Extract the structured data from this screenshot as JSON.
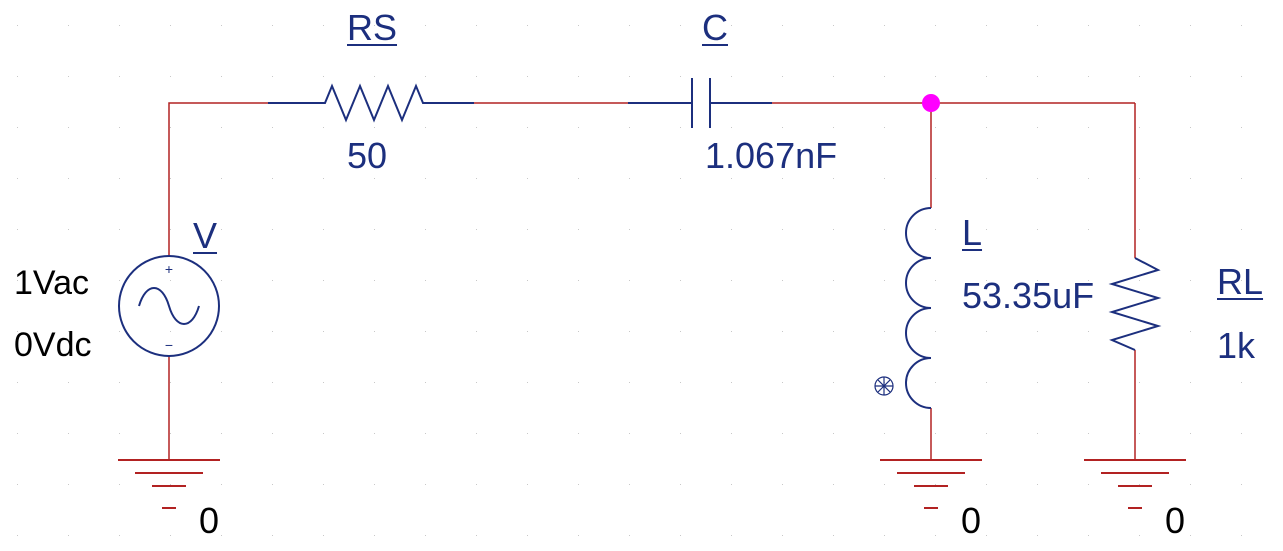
{
  "source": {
    "ref": "V",
    "ac": "1Vac",
    "dc": "0Vdc",
    "plus": "+",
    "minus": "−"
  },
  "rs": {
    "ref": "RS",
    "value": "50"
  },
  "c": {
    "ref": "C",
    "value": "1.067nF"
  },
  "l": {
    "ref": "L",
    "value": "53.35uF"
  },
  "rl": {
    "ref": "RL",
    "value": "1k"
  },
  "grounds": [
    "0",
    "0",
    "0"
  ],
  "colors": {
    "wire": "#b22222",
    "component": "#1c2f7e",
    "junction": "#ff00ff",
    "label": "#1c2f7e",
    "node_text": "#000000",
    "background": "#ffffff"
  }
}
